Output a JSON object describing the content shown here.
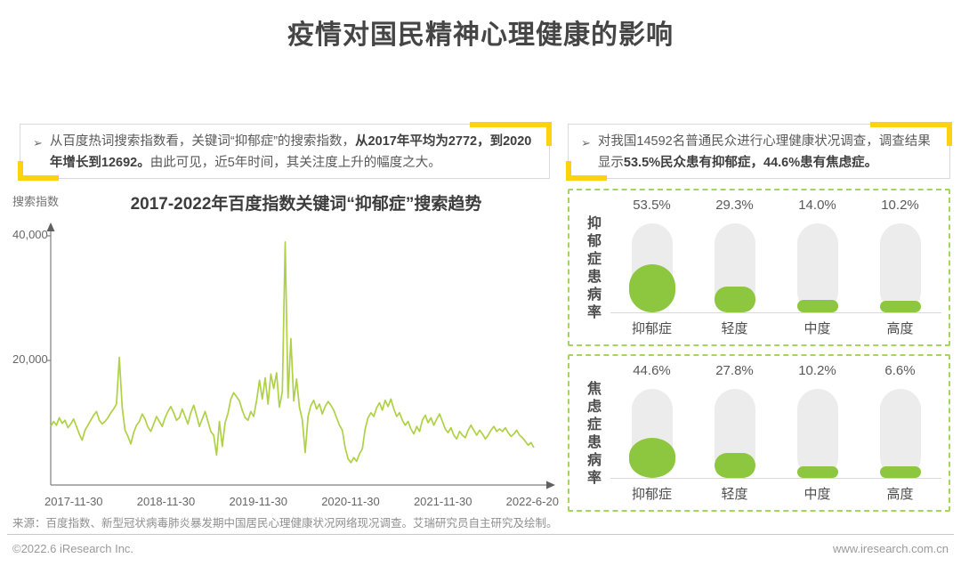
{
  "page": {
    "title": "疫情对国民精神心理健康的影响"
  },
  "insights": {
    "left": {
      "bullet": "➢",
      "pre": "从百度热词搜索指数看，关键词“抑郁症”的搜索指数，",
      "bold": "从2017年平均为2772，到2020年增长到12692。",
      "post": "由此可见，近5年时间，其关注度上升的幅度之大。"
    },
    "right": {
      "bullet": "➢",
      "pre": "对我国14592名普通民众进行心理健康状况调查，调查结果显示",
      "bold": "53.5%民众患有抑郁症，44.6%患有焦虑症。",
      "post": ""
    }
  },
  "line_chart": {
    "title": "2017-2022年百度指数关键词“抑郁症”搜索趋势",
    "ylabel": "搜索指数",
    "y_ticks": {
      "t40": "40,000",
      "t20": "20,000"
    },
    "x_ticks": [
      "2017-11-30",
      "2018-11-30",
      "2019-11-30",
      "2020-11-30",
      "2021-11-30",
      "2022-6-20"
    ]
  },
  "panels": [
    {
      "vlabel": "抑郁症患病率",
      "items": [
        {
          "pct": "53.5%",
          "cat": "抑郁症"
        },
        {
          "pct": "29.3%",
          "cat": "轻度"
        },
        {
          "pct": "14.0%",
          "cat": "中度"
        },
        {
          "pct": "10.2%",
          "cat": "高度"
        }
      ]
    },
    {
      "vlabel": "焦虑症患病率",
      "items": [
        {
          "pct": "44.6%",
          "cat": "抑郁症"
        },
        {
          "pct": "27.8%",
          "cat": "轻度"
        },
        {
          "pct": "10.2%",
          "cat": "中度"
        },
        {
          "pct": "6.6%",
          "cat": "高度"
        }
      ]
    }
  ],
  "source": "来源：百度指数、新型冠状病毒肺炎暴发期中国居民心理健康状况网络现况调查。艾瑞研究员自主研究及绘制。",
  "footer": {
    "left": "©2022.6 iResearch Inc.",
    "right": "www.iresearch.com.cn"
  },
  "colors": {
    "green": "#8dc63f",
    "line_green": "#aed145",
    "panel_border": "#a4d55f",
    "yellow": "#ffd20f",
    "capsule_gray": "#ececec"
  },
  "chart_data": [
    {
      "type": "line",
      "title": "2017-2022年百度指数关键词“抑郁症”搜索趋势",
      "ylabel": "搜索指数",
      "xlabel": "",
      "x_tick_labels": [
        "2017-11-30",
        "2018-11-30",
        "2019-11-30",
        "2020-11-30",
        "2021-11-30",
        "2022-6-20"
      ],
      "ylim": [
        0,
        42000
      ],
      "y_tick_values": [
        20000,
        40000
      ],
      "grid": false,
      "legend": "none",
      "annotations": [
        "2017年平均为2772",
        "2020年增长到12692",
        "峰值约39000"
      ],
      "series": [
        {
          "name": "抑郁症搜索指数",
          "values": [
            9400,
            10200,
            9600,
            10800,
            9900,
            10400,
            9200,
            9800,
            10600,
            9400,
            8200,
            7200,
            8800,
            9600,
            10400,
            11200,
            11800,
            10400,
            9800,
            10200,
            10800,
            11600,
            12200,
            13000,
            20500,
            12500,
            8800,
            7800,
            6600,
            8400,
            9600,
            10200,
            11400,
            10600,
            9300,
            8600,
            9800,
            11000,
            10200,
            9400,
            10800,
            11800,
            12600,
            11600,
            10400,
            10800,
            12200,
            11000,
            9800,
            11600,
            12800,
            11200,
            9400,
            10600,
            11800,
            10200,
            8600,
            8000,
            4800,
            10200,
            6200,
            10000,
            11500,
            13800,
            14800,
            14200,
            13500,
            12000,
            10800,
            10400,
            11800,
            11000,
            13500,
            16800,
            13800,
            17200,
            13000,
            17800,
            15500,
            18000,
            12500,
            15000,
            39000,
            14000,
            23500,
            13500,
            17000,
            12500,
            10500,
            5200,
            11000,
            12800,
            13600,
            12200,
            13000,
            11400,
            12600,
            13400,
            12800,
            12000,
            10800,
            9600,
            8800,
            6000,
            4200,
            3600,
            4400,
            3800,
            5000,
            5800,
            9000,
            10800,
            11600,
            11000,
            12400,
            13200,
            12000,
            13600,
            12600,
            13800,
            12200,
            11000,
            11600,
            10400,
            9600,
            10200,
            9000,
            8200,
            9400,
            8600,
            10400,
            11200,
            10000,
            10800,
            9600,
            10600,
            11400,
            10200,
            9000,
            8400,
            9200,
            8000,
            7400,
            8600,
            8000,
            7600,
            8800,
            9600,
            8800,
            8000,
            8800,
            8200,
            7400,
            8000,
            8800,
            9400,
            8600,
            9000,
            8600,
            9200,
            8400,
            7800,
            8200,
            8800,
            8000,
            7600,
            7000,
            6400,
            6800,
            6000
          ]
        }
      ]
    },
    {
      "type": "bar",
      "title": "抑郁症患病率",
      "categories": [
        "抑郁症",
        "轻度",
        "中度",
        "高度"
      ],
      "values": [
        53.5,
        29.3,
        14.0,
        10.2
      ],
      "unit": "%"
    },
    {
      "type": "bar",
      "title": "焦虑症患病率",
      "categories": [
        "抑郁症",
        "轻度",
        "中度",
        "高度"
      ],
      "values": [
        44.6,
        27.8,
        10.2,
        6.6
      ],
      "unit": "%"
    }
  ]
}
